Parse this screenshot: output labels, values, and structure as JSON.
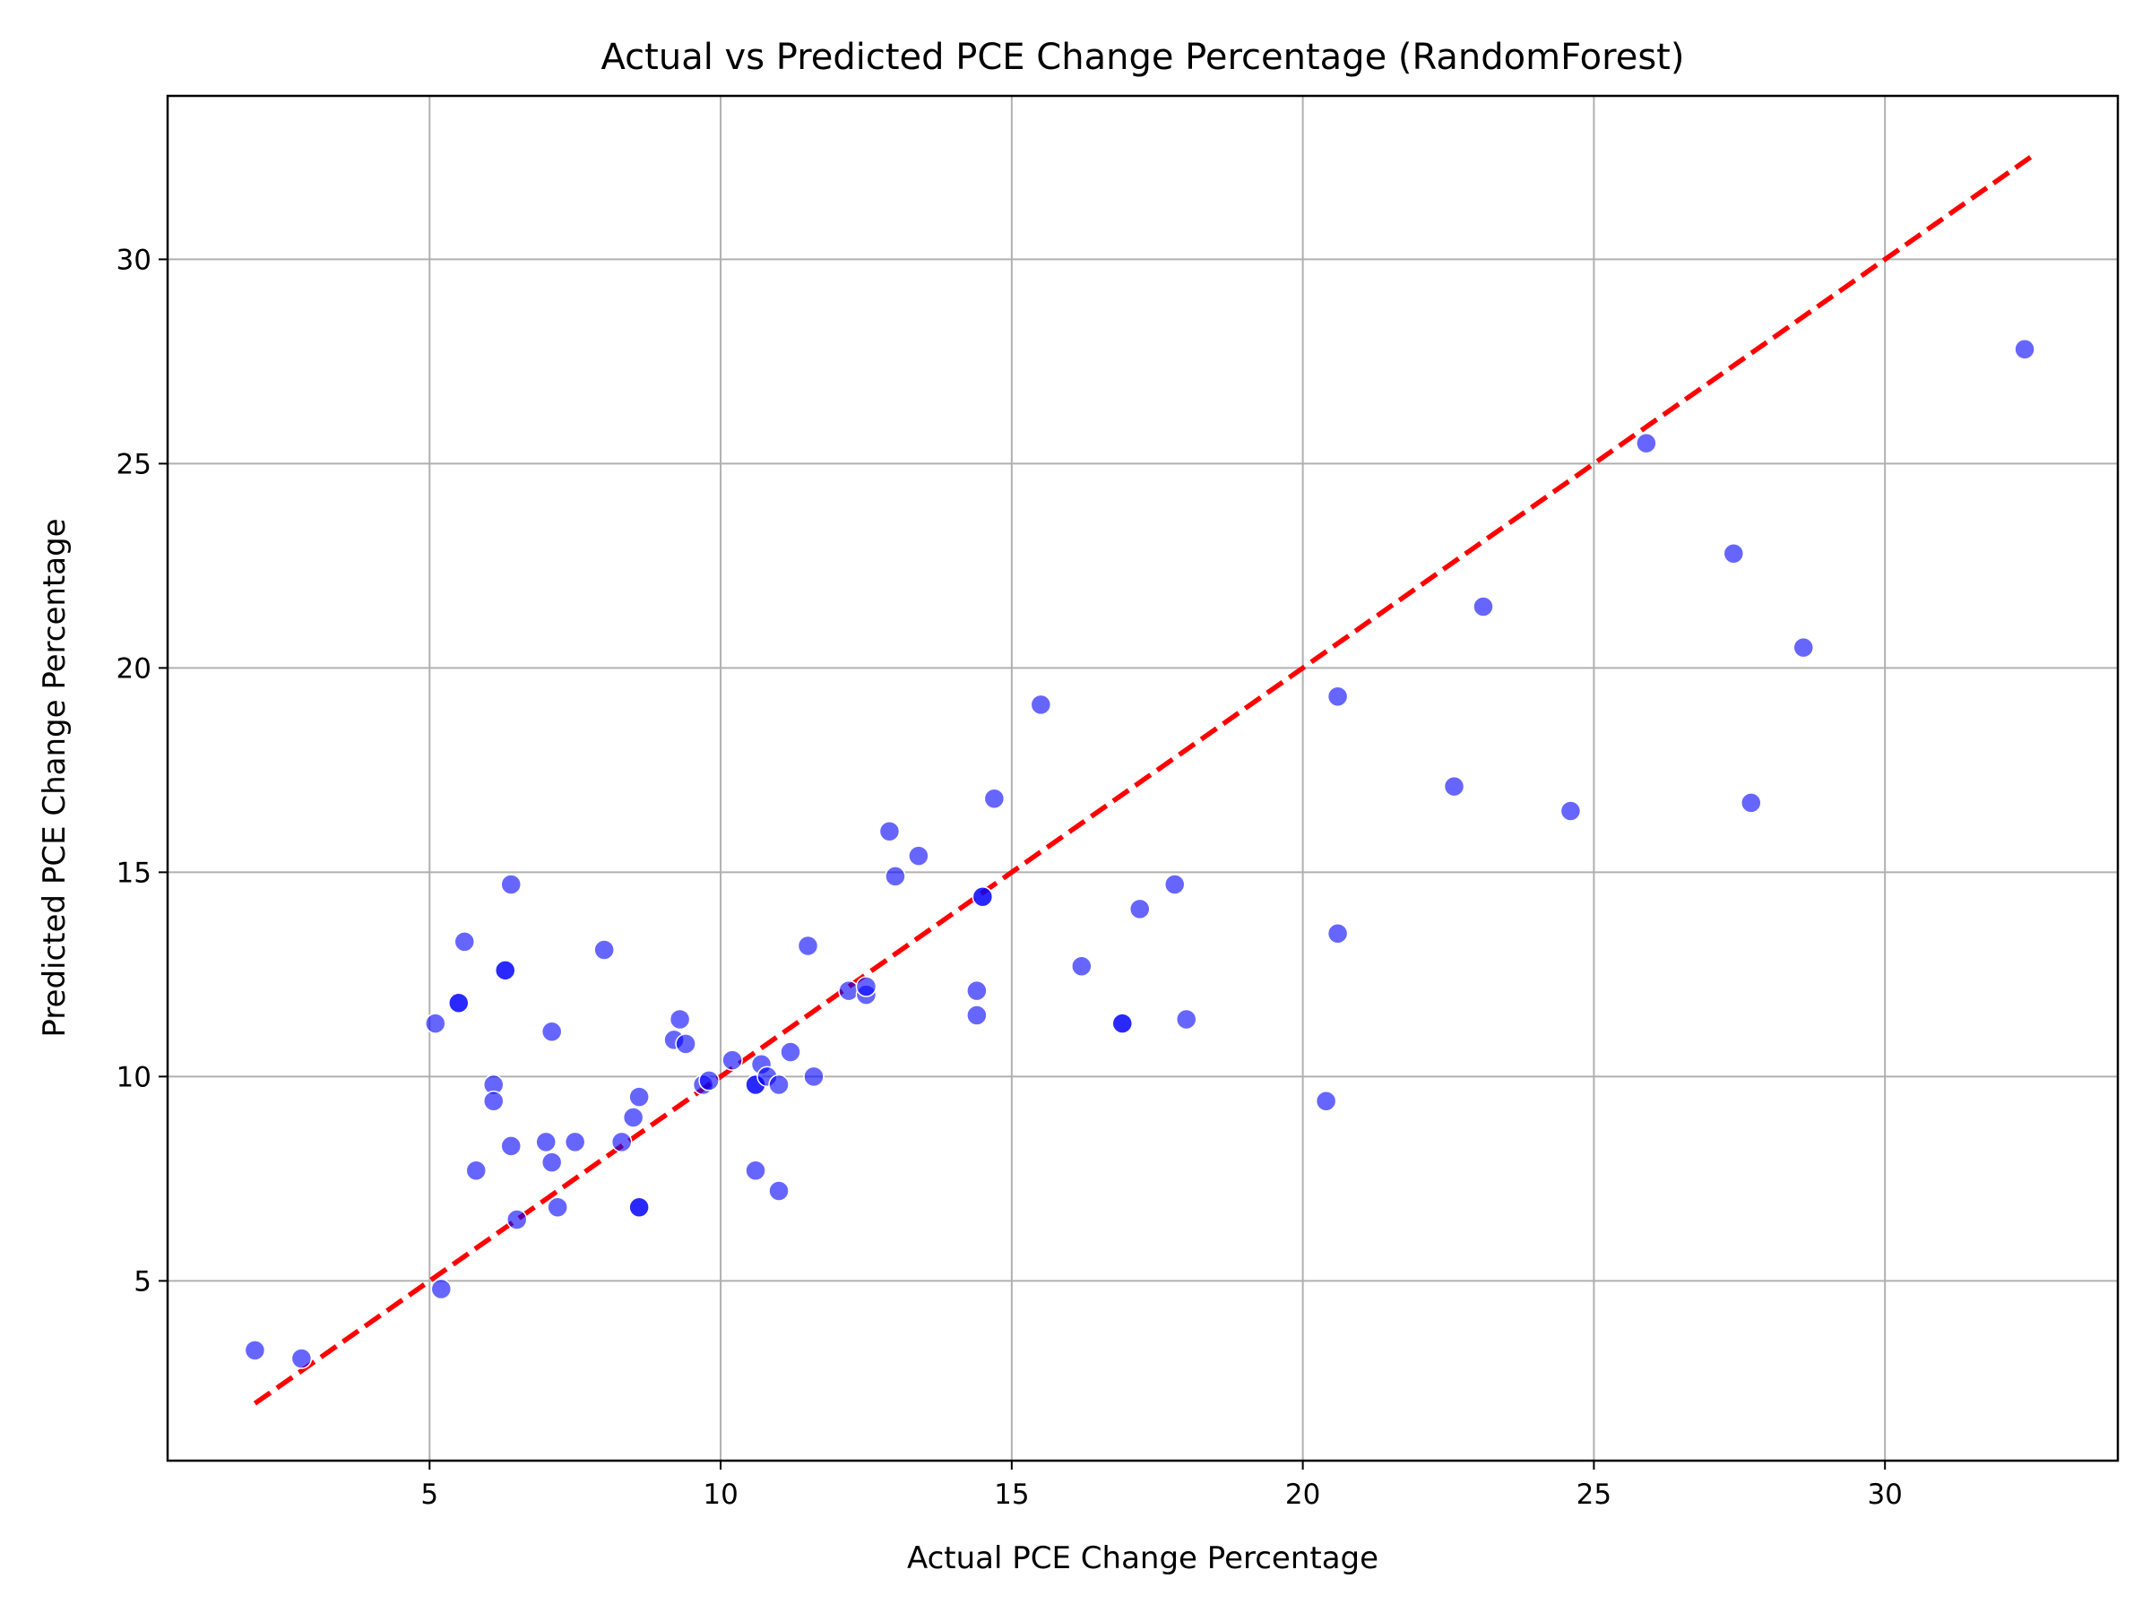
{
  "chart_data": {
    "type": "scatter",
    "title": "Actual vs Predicted PCE Change Percentage (RandomForest)",
    "xlabel": "Actual PCE Change Percentage",
    "ylabel": "Predicted PCE Change Percentage",
    "xlim": [
      0.5,
      34
    ],
    "ylim": [
      0.6,
      34
    ],
    "xticks": [
      5,
      10,
      15,
      20,
      25,
      30
    ],
    "yticks": [
      5,
      10,
      15,
      20,
      25,
      30
    ],
    "grid": true,
    "point_color": "#0000ff",
    "point_alpha": 0.6,
    "reference_line": {
      "style": "dashed",
      "color": "#ff0000",
      "from": [
        2.0,
        2.0
      ],
      "to": [
        32.5,
        32.5
      ]
    },
    "points": [
      [
        2.0,
        3.3
      ],
      [
        2.8,
        3.1
      ],
      [
        5.1,
        11.3
      ],
      [
        5.2,
        4.8
      ],
      [
        5.5,
        11.8
      ],
      [
        5.5,
        11.8
      ],
      [
        5.6,
        13.3
      ],
      [
        5.8,
        7.7
      ],
      [
        6.1,
        9.8
      ],
      [
        6.1,
        9.4
      ],
      [
        6.3,
        12.6
      ],
      [
        6.3,
        12.6
      ],
      [
        6.4,
        8.3
      ],
      [
        6.4,
        14.7
      ],
      [
        6.5,
        6.5
      ],
      [
        7.0,
        8.4
      ],
      [
        7.1,
        7.9
      ],
      [
        7.1,
        11.1
      ],
      [
        7.2,
        6.8
      ],
      [
        7.5,
        8.4
      ],
      [
        8.0,
        13.1
      ],
      [
        8.3,
        8.4
      ],
      [
        8.5,
        9.0
      ],
      [
        8.6,
        6.8
      ],
      [
        8.6,
        6.8
      ],
      [
        8.6,
        9.5
      ],
      [
        9.2,
        10.9
      ],
      [
        9.3,
        11.4
      ],
      [
        9.4,
        10.8
      ],
      [
        9.7,
        9.8
      ],
      [
        9.8,
        9.9
      ],
      [
        10.2,
        10.4
      ],
      [
        10.6,
        7.7
      ],
      [
        10.6,
        9.8
      ],
      [
        10.6,
        9.8
      ],
      [
        10.7,
        10.3
      ],
      [
        10.8,
        10.0
      ],
      [
        11.0,
        7.2
      ],
      [
        11.0,
        9.8
      ],
      [
        11.2,
        10.6
      ],
      [
        11.5,
        13.2
      ],
      [
        11.6,
        10.0
      ],
      [
        12.2,
        12.1
      ],
      [
        12.5,
        12.0
      ],
      [
        12.5,
        12.2
      ],
      [
        12.9,
        16.0
      ],
      [
        13.0,
        14.9
      ],
      [
        13.4,
        15.4
      ],
      [
        14.4,
        12.1
      ],
      [
        14.4,
        11.5
      ],
      [
        14.5,
        14.4
      ],
      [
        14.5,
        14.4
      ],
      [
        14.7,
        16.8
      ],
      [
        15.5,
        19.1
      ],
      [
        16.2,
        12.7
      ],
      [
        16.9,
        11.3
      ],
      [
        16.9,
        11.3
      ],
      [
        17.2,
        14.1
      ],
      [
        17.8,
        14.7
      ],
      [
        18.0,
        11.4
      ],
      [
        20.4,
        9.4
      ],
      [
        20.6,
        19.3
      ],
      [
        20.6,
        13.5
      ],
      [
        22.6,
        17.1
      ],
      [
        23.1,
        21.5
      ],
      [
        24.6,
        16.5
      ],
      [
        25.9,
        25.5
      ],
      [
        27.4,
        22.8
      ],
      [
        27.7,
        16.7
      ],
      [
        28.6,
        20.5
      ],
      [
        32.4,
        27.8
      ]
    ]
  }
}
